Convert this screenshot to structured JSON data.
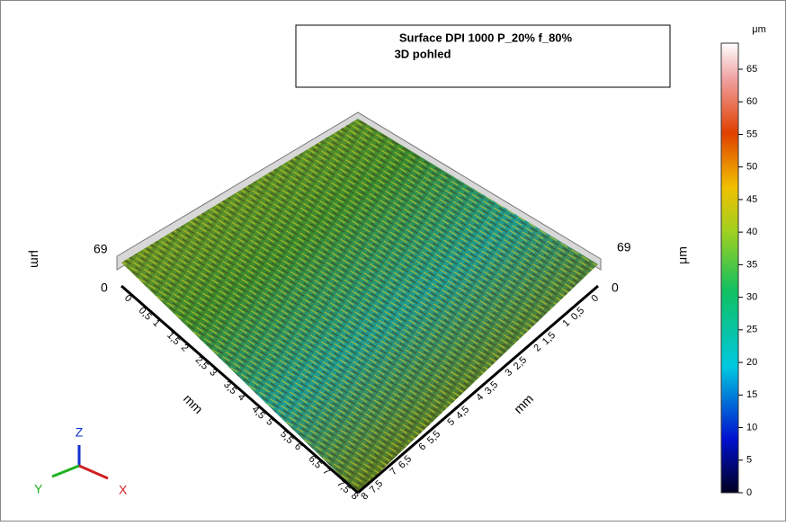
{
  "title": [
    "Surface DPI 1000 P_20% f_80%",
    "3D pohled"
  ],
  "colorbar": {
    "unit": "μm",
    "lim": [
      0,
      69
    ],
    "ticks": [
      0,
      5,
      10,
      15,
      20,
      25,
      30,
      35,
      40,
      45,
      50,
      55,
      60,
      65
    ]
  },
  "z_axis": {
    "unit": "μm",
    "max_label": "69",
    "min_label": "0"
  },
  "horizontal_axes": {
    "unit": "mm",
    "ticks": [
      "0",
      "0,5",
      "1",
      "1,5",
      "2",
      "2,5",
      "3",
      "3,5",
      "4",
      "4,5",
      "5",
      "5,5",
      "6",
      "6,5",
      "7",
      "7,5",
      "8"
    ]
  },
  "triad": {
    "z": "Z",
    "y": "Y",
    "x": "X"
  }
}
